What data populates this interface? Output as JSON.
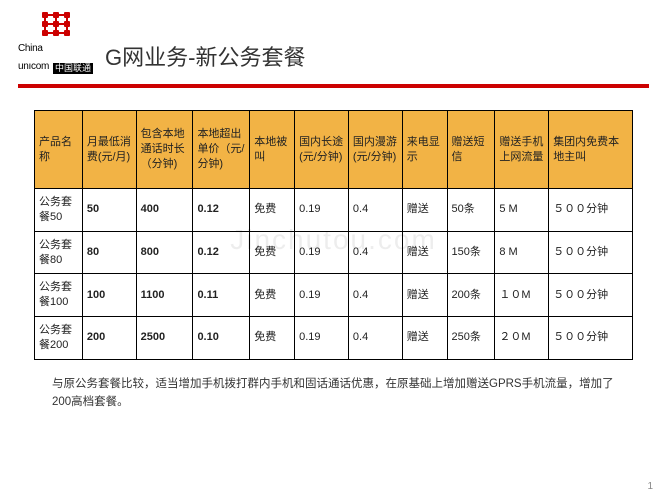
{
  "logo": {
    "en": "China",
    "en2": "unıcom",
    "cn": "中国联通",
    "color": "#cc0000"
  },
  "title": "G网业务-新公务套餐",
  "watermark": "Jinchutou.com",
  "table": {
    "header_bg": "#f2b345",
    "border_color": "#000000",
    "columns": [
      "产品名称",
      "月最低消费(元/月)",
      "包含本地通话时长（分钟)",
      "本地超出单价（元/分钟)",
      "本地被叫",
      "国内长途(元/分钟)",
      "国内漫游(元/分钟)",
      "来电显示",
      "赠送短信",
      "赠送手机上网流量",
      "集团内免费本地主叫"
    ],
    "col_widths": [
      "8%",
      "9%",
      "9.5%",
      "9.5%",
      "7.5%",
      "9%",
      "9%",
      "7.5%",
      "8%",
      "9%",
      "14%"
    ],
    "rows": [
      [
        "公务套餐50",
        "50",
        "400",
        "0.12",
        "免费",
        "0.19",
        "0.4",
        "赠送",
        "50条",
        "5 M",
        "５００分钟"
      ],
      [
        "公务套餐80",
        "80",
        "800",
        "0.12",
        "免费",
        "0.19",
        "0.4",
        "赠送",
        "150条",
        "8 M",
        "５００分钟"
      ],
      [
        "公务套餐100",
        "100",
        "1100",
        "0.11",
        "免费",
        "0.19",
        "0.4",
        "赠送",
        "200条",
        "１０M",
        "５００分钟"
      ],
      [
        "公务套餐200",
        "200",
        "2500",
        "0.10",
        "免费",
        "0.19",
        "0.4",
        "赠送",
        "250条",
        "２０M",
        "５００分钟"
      ]
    ],
    "bold_cols": [
      1,
      2,
      3
    ]
  },
  "footnote": "与原公务套餐比较，适当增加手机拨打群内手机和固话通话优惠，在原基础上增加赠送GPRS手机流量，增加了200高档套餐。",
  "page": "1"
}
